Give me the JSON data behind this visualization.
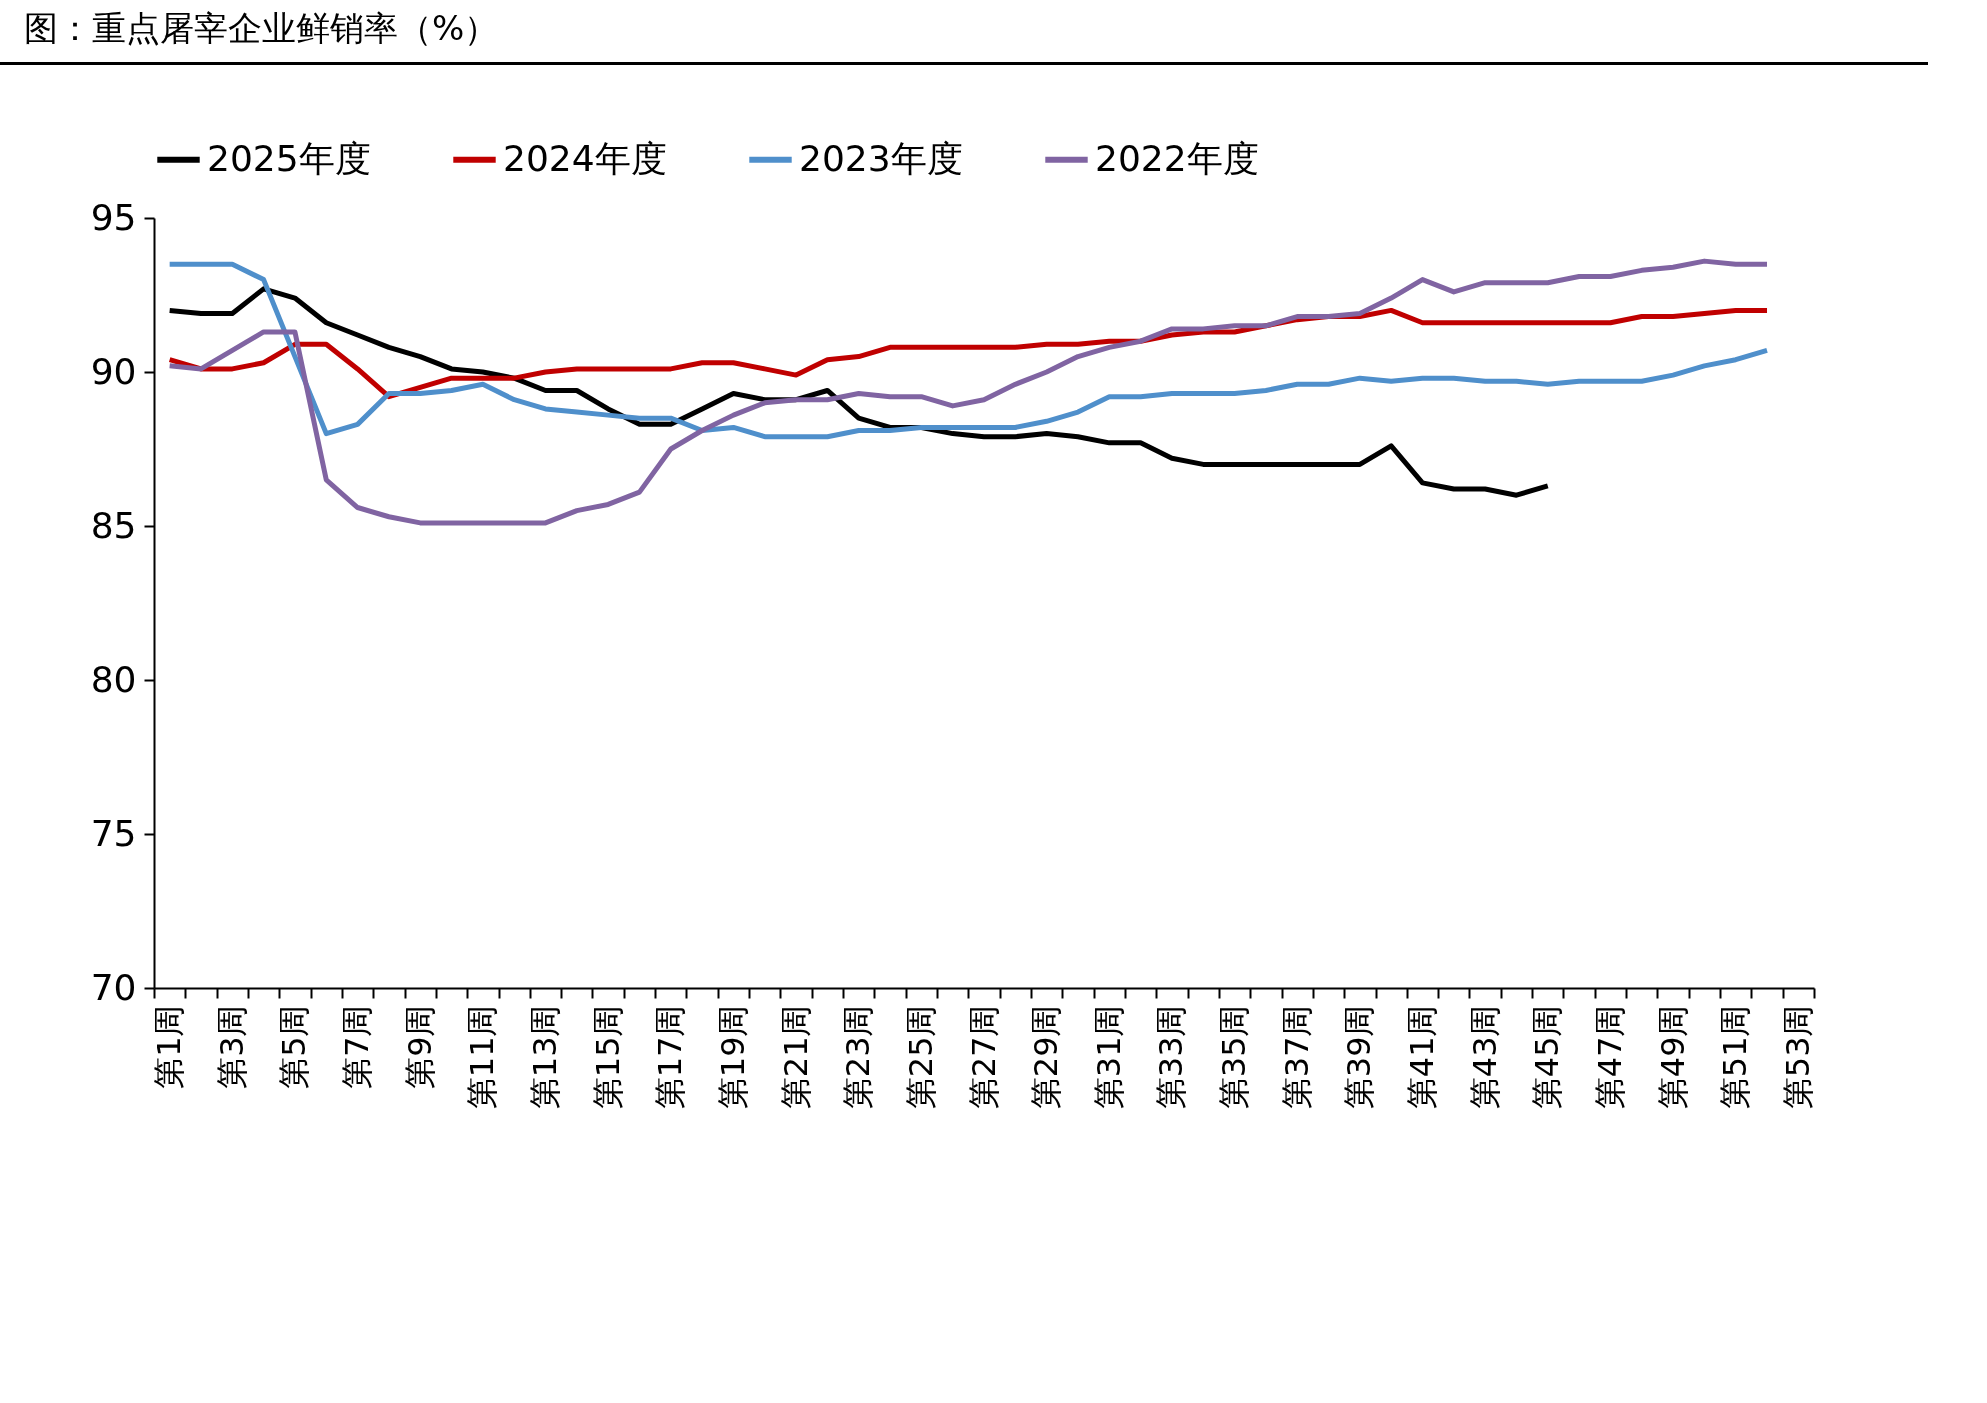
{
  "chart_data": {
    "type": "line",
    "title": "图：重点屠宰企业鲜销率（%）",
    "categories": [
      "第1周",
      null,
      "第3周",
      null,
      "第5周",
      null,
      "第7周",
      null,
      "第9周",
      null,
      "第11周",
      null,
      "第13周",
      null,
      "第15周",
      null,
      "第17周",
      null,
      "第19周",
      null,
      "第21周",
      null,
      "第23周",
      null,
      "第25周",
      null,
      "第27周",
      null,
      "第29周",
      null,
      "第31周",
      null,
      "第33周",
      null,
      "第35周",
      null,
      "第37周",
      null,
      "第39周",
      null,
      "第41周",
      null,
      "第43周",
      null,
      "第45周",
      null,
      "第47周",
      null,
      "第49周",
      null,
      "第51周",
      null,
      "第53周"
    ],
    "series": [
      {
        "name": "2025年度",
        "color": "#000000",
        "values": [
          92.0,
          91.9,
          91.9,
          92.7,
          92.4,
          91.6,
          91.2,
          90.8,
          90.5,
          90.1,
          90.0,
          89.8,
          89.4,
          89.4,
          88.8,
          88.3,
          88.3,
          88.8,
          89.3,
          89.1,
          89.1,
          89.4,
          88.5,
          88.2,
          88.2,
          88.0,
          87.9,
          87.9,
          88.0,
          87.9,
          87.7,
          87.7,
          87.2,
          87.0,
          87.0,
          87.0,
          87.0,
          87.0,
          87.0,
          87.6,
          86.4,
          86.2,
          86.2,
          86.0,
          86.3,
          null,
          null,
          null,
          null,
          null,
          null,
          null,
          null
        ]
      },
      {
        "name": "2024年度",
        "color": "#c00000",
        "values": [
          90.4,
          90.1,
          90.1,
          90.3,
          90.9,
          90.9,
          90.1,
          89.2,
          89.5,
          89.8,
          89.8,
          89.8,
          90.0,
          90.1,
          90.1,
          90.1,
          90.1,
          90.3,
          90.3,
          90.1,
          89.9,
          90.4,
          90.5,
          90.8,
          90.8,
          90.8,
          90.8,
          90.8,
          90.9,
          90.9,
          91.0,
          91.0,
          91.2,
          91.3,
          91.3,
          91.5,
          91.7,
          91.8,
          91.8,
          92.0,
          91.6,
          91.6,
          91.6,
          91.6,
          91.6,
          91.6,
          91.6,
          91.8,
          91.8,
          91.9,
          92.0,
          92.0,
          null
        ]
      },
      {
        "name": "2023年度",
        "color": "#4f8fcb",
        "values": [
          93.5,
          93.5,
          93.5,
          93.0,
          90.5,
          88.0,
          88.3,
          89.3,
          89.3,
          89.4,
          89.6,
          89.1,
          88.8,
          88.7,
          88.6,
          88.5,
          88.5,
          88.1,
          88.2,
          87.9,
          87.9,
          87.9,
          88.1,
          88.1,
          88.2,
          88.2,
          88.2,
          88.2,
          88.4,
          88.7,
          89.2,
          89.2,
          89.3,
          89.3,
          89.3,
          89.4,
          89.6,
          89.6,
          89.8,
          89.7,
          89.8,
          89.8,
          89.7,
          89.7,
          89.6,
          89.7,
          89.7,
          89.7,
          89.9,
          90.2,
          90.4,
          90.7,
          null
        ]
      },
      {
        "name": "2022年度",
        "color": "#8064a2",
        "values": [
          90.2,
          90.1,
          90.7,
          91.3,
          91.3,
          86.5,
          85.6,
          85.3,
          85.1,
          85.1,
          85.1,
          85.1,
          85.1,
          85.5,
          85.7,
          86.1,
          87.5,
          88.1,
          88.6,
          89.0,
          89.1,
          89.1,
          89.3,
          89.2,
          89.2,
          88.9,
          89.1,
          89.6,
          90.0,
          90.5,
          90.8,
          91.0,
          91.4,
          91.4,
          91.5,
          91.5,
          91.8,
          91.8,
          91.9,
          92.4,
          93.0,
          92.6,
          92.9,
          92.9,
          92.9,
          93.1,
          93.1,
          93.3,
          93.4,
          93.6,
          93.5,
          93.5,
          null
        ]
      }
    ],
    "ylim": [
      70,
      95
    ],
    "yticks": [
      70,
      75,
      80,
      85,
      90,
      95
    ],
    "grid": false,
    "legend": "top"
  }
}
